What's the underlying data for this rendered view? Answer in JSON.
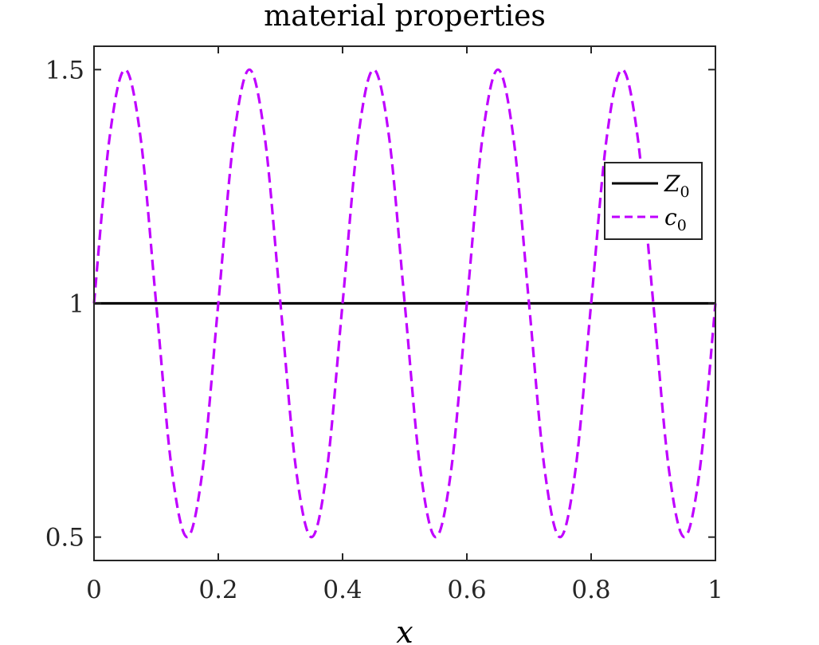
{
  "chart_data": {
    "type": "line",
    "title": "material properties",
    "xlabel": "x",
    "ylabel": "",
    "xlim": [
      0,
      1
    ],
    "ylim": [
      0.45,
      1.55
    ],
    "xticks": [
      0,
      0.2,
      0.4,
      0.6,
      0.8,
      1
    ],
    "xtick_labels": [
      "0",
      "0.2",
      "0.4",
      "0.6",
      "0.8",
      "1"
    ],
    "yticks": [
      0.5,
      1,
      1.5
    ],
    "ytick_labels": [
      "0.5",
      "1",
      "1.5"
    ],
    "grid": false,
    "legend_position": "right",
    "series": [
      {
        "name": "Z",
        "subscript": "0",
        "style": "solid",
        "color": "#000000",
        "x": [
          0,
          1
        ],
        "y": [
          1,
          1
        ]
      },
      {
        "name": "c",
        "subscript": "0",
        "style": "dashed",
        "color": "#bf00ff",
        "x": [
          0,
          0.025,
          0.05,
          0.075,
          0.1,
          0.125,
          0.15,
          0.175,
          0.2,
          0.225,
          0.25,
          0.275,
          0.3,
          0.325,
          0.35,
          0.375,
          0.4,
          0.425,
          0.45,
          0.475,
          0.5,
          0.525,
          0.55,
          0.575,
          0.6,
          0.625,
          0.65,
          0.675,
          0.7,
          0.725,
          0.75,
          0.775,
          0.8,
          0.825,
          0.85,
          0.875,
          0.9,
          0.925,
          0.95,
          0.975,
          1
        ],
        "y": [
          1,
          1.354,
          1.5,
          1.354,
          1,
          0.646,
          0.5,
          0.646,
          1,
          1.354,
          1.5,
          1.354,
          1,
          0.646,
          0.5,
          0.646,
          1,
          1.354,
          1.5,
          1.354,
          1,
          0.646,
          0.5,
          0.646,
          1,
          1.354,
          1.5,
          1.354,
          1,
          0.646,
          0.5,
          0.646,
          1,
          1.354,
          1.5,
          1.354,
          1,
          0.646,
          0.5,
          0.646,
          1
        ]
      }
    ]
  }
}
